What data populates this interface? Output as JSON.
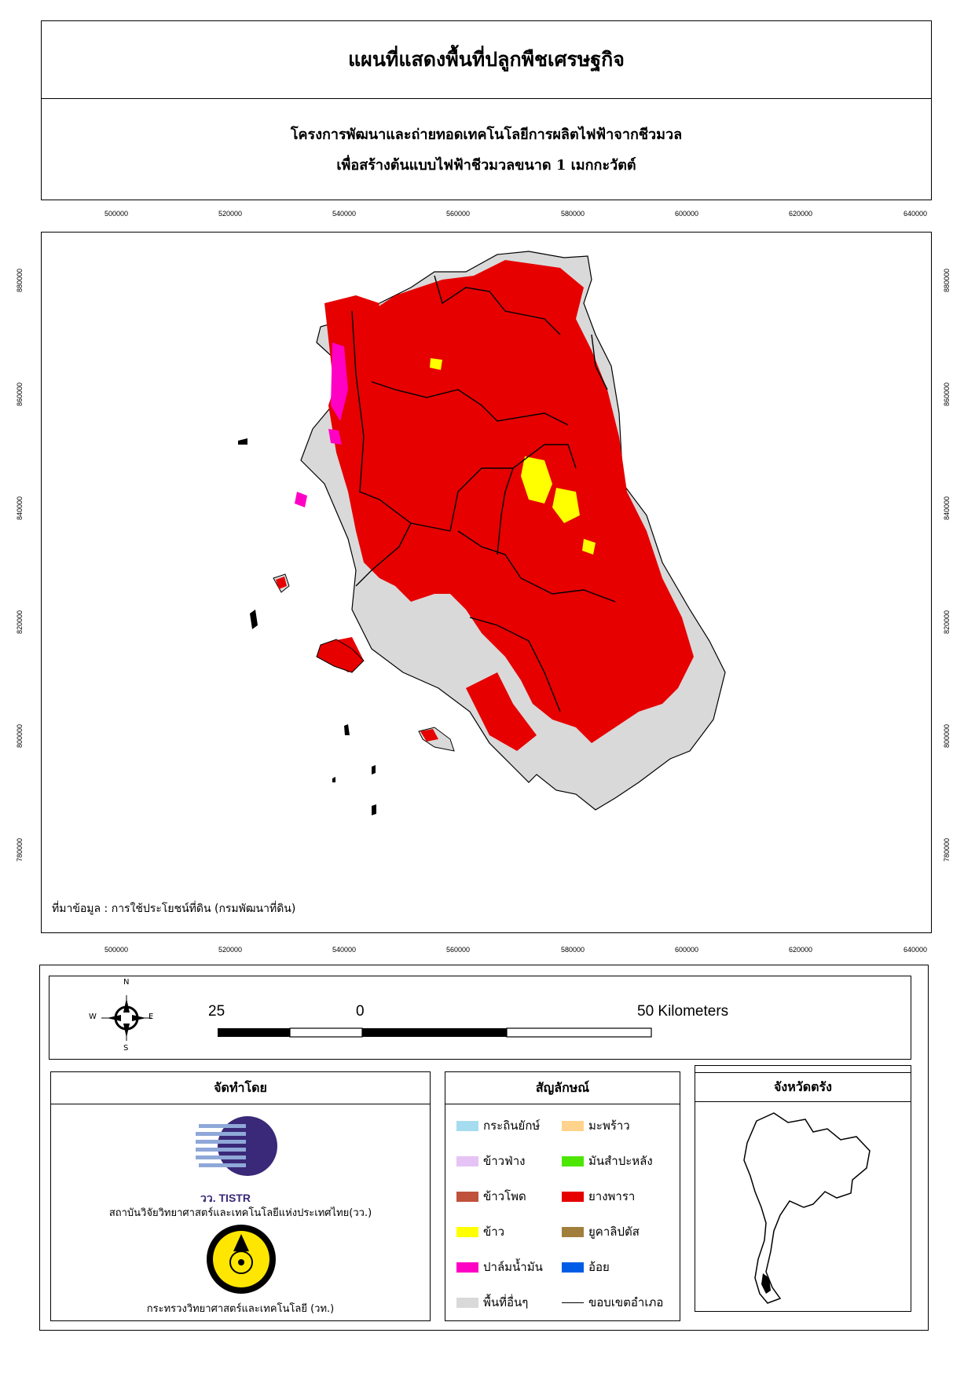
{
  "title": "แผนที่แสดงพื้นที่ปลูกพืชเศรษฐกิจ",
  "subtitle": {
    "line1": "โครงการพัฒนาและถ่ายทอดเทคโนโลยีการผลิตไฟฟ้าจากชีวมวล",
    "line2": "เพื่อสร้างต้นแบบไฟฟ้าชีวมวลขนาด 1 เมกกะวัตต์"
  },
  "map": {
    "x_ticks": [
      "500000",
      "520000",
      "540000",
      "560000",
      "580000",
      "600000",
      "620000",
      "640000"
    ],
    "y_ticks": [
      "880000",
      "860000",
      "840000",
      "820000",
      "800000",
      "780000"
    ],
    "source_note": "ที่มาข้อมูล : การใช้ประโยชน์ที่ดิน  (กรมพัฒนาที่ดิน)",
    "colors": {
      "rubber": "#e60000",
      "other": "#d9d9d9",
      "rice": "#ffff00",
      "palm": "#ff00c5",
      "boundary": "#000000"
    }
  },
  "scale": {
    "left_label": "25",
    "zero_label": "0",
    "right_label": "50 Kilometers",
    "compass": {
      "n": "N",
      "s": "S",
      "e": "E",
      "w": "W"
    }
  },
  "credits": {
    "header": "จัดทำโดย",
    "logo1_text": "วว. TISTR",
    "org1": "สถาบันวิจัยวิทยาศาสตร์และเทคโนโลยีแห่งประเทศไทย(วว.)",
    "org2": "กระทรวงวิทยาศาสตร์และเทคโนโลยี (วท.)"
  },
  "legend": {
    "header": "สัญลักษณ์",
    "items": [
      {
        "label": "กระถินยักษ์",
        "color": "#a6dcf0"
      },
      {
        "label": "มะพร้าว",
        "color": "#ffd38c"
      },
      {
        "label": "ข้าวฟ่าง",
        "color": "#e6c3f5"
      },
      {
        "label": "มันสำปะหลัง",
        "color": "#4ce600"
      },
      {
        "label": "ข้าวโพด",
        "color": "#c0523c"
      },
      {
        "label": "ยางพารา",
        "color": "#e60000"
      },
      {
        "label": "ข้าว",
        "color": "#ffff00"
      },
      {
        "label": "ยูคาลิปตัส",
        "color": "#a07e3c"
      },
      {
        "label": "ปาล์มน้ำมัน",
        "color": "#ff00c5"
      },
      {
        "label": "อ้อย",
        "color": "#005ce6"
      },
      {
        "label": "พื้นที่อื่นๆ",
        "color": "#d9d9d9"
      },
      {
        "label": "ขอบเขตอำเภอ",
        "color": "#000000"
      }
    ]
  },
  "inset": {
    "header": "จังหวัดตรัง"
  }
}
